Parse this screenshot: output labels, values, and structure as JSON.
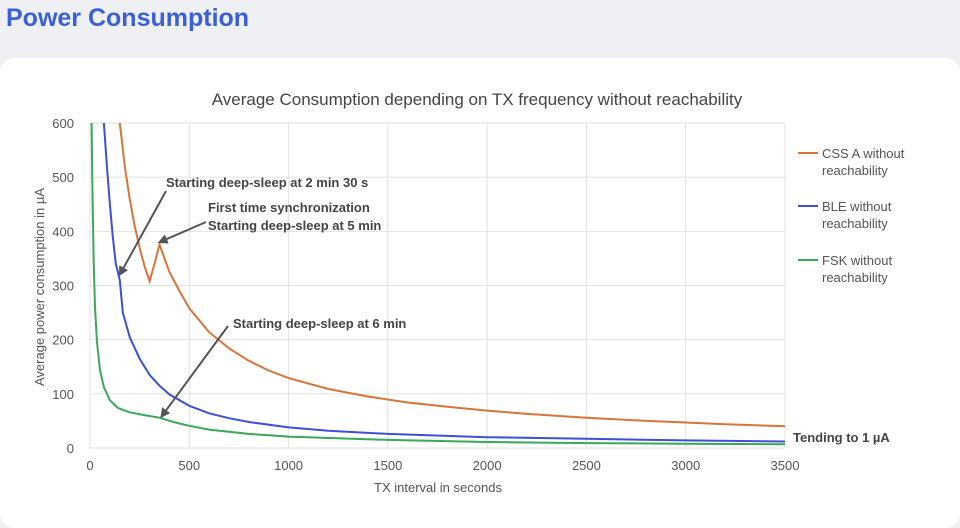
{
  "page": {
    "title": "Power Consumption"
  },
  "chart_data": {
    "type": "line",
    "title": "Average Consumption depending on TX frequency without reachability",
    "xlabel": "TX interval in seconds",
    "ylabel": "Average power consumption in µA",
    "xlim": [
      0,
      3500
    ],
    "ylim": [
      0,
      600
    ],
    "xticks": [
      0,
      500,
      1000,
      1500,
      2000,
      2500,
      3000,
      3500
    ],
    "yticks": [
      0,
      100,
      200,
      300,
      400,
      500,
      600
    ],
    "grid": true,
    "legend_position": "right",
    "series": [
      {
        "name_lines": [
          "CSS A without",
          "reachability"
        ],
        "color": "#d8743a",
        "points": [
          [
            150,
            600
          ],
          [
            175,
            520
          ],
          [
            200,
            460
          ],
          [
            225,
            410
          ],
          [
            250,
            370
          ],
          [
            275,
            335
          ],
          [
            300,
            308
          ],
          [
            325,
            340
          ],
          [
            350,
            376
          ],
          [
            375,
            350
          ],
          [
            400,
            325
          ],
          [
            450,
            290
          ],
          [
            500,
            258
          ],
          [
            600,
            214
          ],
          [
            700,
            184
          ],
          [
            800,
            161
          ],
          [
            900,
            143
          ],
          [
            1000,
            129
          ],
          [
            1200,
            109
          ],
          [
            1400,
            95
          ],
          [
            1600,
            84
          ],
          [
            1800,
            76
          ],
          [
            2000,
            69
          ],
          [
            2200,
            63
          ],
          [
            2500,
            56
          ],
          [
            2800,
            50
          ],
          [
            3000,
            47
          ],
          [
            3200,
            44
          ],
          [
            3500,
            40
          ]
        ]
      },
      {
        "name_lines": [
          "BLE without",
          "reachability"
        ],
        "color": "#3d4fd6",
        "points": [
          [
            70,
            600
          ],
          [
            85,
            520
          ],
          [
            100,
            450
          ],
          [
            115,
            390
          ],
          [
            130,
            340
          ],
          [
            150,
            310
          ],
          [
            165,
            250
          ],
          [
            200,
            205
          ],
          [
            250,
            165
          ],
          [
            300,
            135
          ],
          [
            350,
            115
          ],
          [
            400,
            99
          ],
          [
            500,
            78
          ],
          [
            600,
            64
          ],
          [
            700,
            55
          ],
          [
            800,
            48
          ],
          [
            1000,
            38
          ],
          [
            1200,
            32
          ],
          [
            1500,
            26
          ],
          [
            2000,
            20
          ],
          [
            2500,
            17
          ],
          [
            3000,
            14
          ],
          [
            3500,
            12
          ]
        ]
      },
      {
        "name_lines": [
          "FSK without",
          "reachability"
        ],
        "color": "#3aa857",
        "points": [
          [
            8,
            600
          ],
          [
            12,
            480
          ],
          [
            18,
            350
          ],
          [
            25,
            260
          ],
          [
            35,
            195
          ],
          [
            50,
            145
          ],
          [
            70,
            112
          ],
          [
            100,
            88
          ],
          [
            140,
            74
          ],
          [
            200,
            66
          ],
          [
            270,
            61
          ],
          [
            350,
            56
          ],
          [
            420,
            48
          ],
          [
            500,
            41
          ],
          [
            600,
            34
          ],
          [
            800,
            26
          ],
          [
            1000,
            21
          ],
          [
            1500,
            15
          ],
          [
            2000,
            11
          ],
          [
            2500,
            9
          ],
          [
            3000,
            8
          ],
          [
            3500,
            7
          ]
        ]
      }
    ],
    "annotations": [
      {
        "lines": [
          "Starting deep-sleep at 2 min 30 s"
        ],
        "arrow_to": [
          150,
          320
        ]
      },
      {
        "lines": [
          "First time synchronization",
          "Starting deep-sleep at 5 min"
        ],
        "arrow_to": [
          350,
          380
        ]
      },
      {
        "lines": [
          "Starting deep-sleep at 6 min"
        ],
        "arrow_to": [
          360,
          58
        ]
      },
      {
        "lines": [
          "Tending to 1 µA"
        ],
        "bold": true
      }
    ]
  }
}
